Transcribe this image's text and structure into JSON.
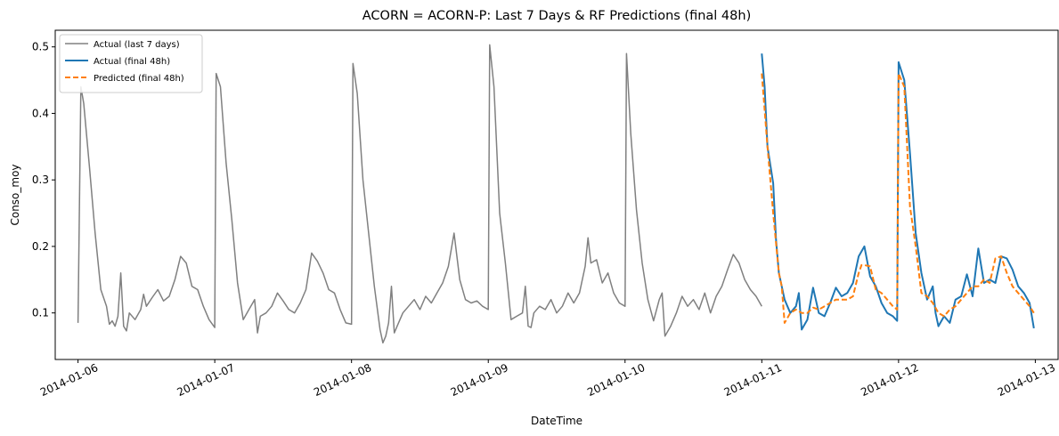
{
  "chart_data": {
    "type": "line",
    "title": "ACORN = ACORN-P: Last 7 Days & RF Predictions (final 48h)",
    "xlabel": "DateTime",
    "ylabel": "Conso_moy",
    "x_range": [
      "2014-01-05T20:00",
      "2014-01-13T04:00"
    ],
    "ylim": [
      0.03,
      0.525
    ],
    "x_ticks": [
      "2014-01-06",
      "2014-01-07",
      "2014-01-08",
      "2014-01-09",
      "2014-01-10",
      "2014-01-11",
      "2014-01-12",
      "2014-01-13"
    ],
    "y_ticks": [
      "0.1",
      "0.2",
      "0.3",
      "0.4",
      "0.5"
    ],
    "grid": false,
    "legend_position": "top-left",
    "series": [
      {
        "name": "Actual (last 7 days)",
        "color": "#808080",
        "style": "solid",
        "points": [
          [
            "2014-01-06T00:00",
            0.085
          ],
          [
            "2014-01-06T00:30",
            0.44
          ],
          [
            "2014-01-06T01:00",
            0.415
          ],
          [
            "2014-01-06T02:00",
            0.32
          ],
          [
            "2014-01-06T03:00",
            0.22
          ],
          [
            "2014-01-06T04:00",
            0.135
          ],
          [
            "2014-01-06T05:00",
            0.11
          ],
          [
            "2014-01-06T05:30",
            0.083
          ],
          [
            "2014-01-06T06:00",
            0.088
          ],
          [
            "2014-01-06T06:30",
            0.08
          ],
          [
            "2014-01-06T07:00",
            0.095
          ],
          [
            "2014-01-06T07:30",
            0.16
          ],
          [
            "2014-01-06T08:00",
            0.08
          ],
          [
            "2014-01-06T08:30",
            0.073
          ],
          [
            "2014-01-06T09:00",
            0.1
          ],
          [
            "2014-01-06T10:00",
            0.09
          ],
          [
            "2014-01-06T11:00",
            0.105
          ],
          [
            "2014-01-06T11:30",
            0.128
          ],
          [
            "2014-01-06T12:00",
            0.11
          ],
          [
            "2014-01-06T13:00",
            0.123
          ],
          [
            "2014-01-06T14:00",
            0.135
          ],
          [
            "2014-01-06T15:00",
            0.118
          ],
          [
            "2014-01-06T16:00",
            0.125
          ],
          [
            "2014-01-06T17:00",
            0.15
          ],
          [
            "2014-01-06T18:00",
            0.185
          ],
          [
            "2014-01-06T19:00",
            0.175
          ],
          [
            "2014-01-06T20:00",
            0.14
          ],
          [
            "2014-01-06T21:00",
            0.135
          ],
          [
            "2014-01-06T22:00",
            0.11
          ],
          [
            "2014-01-06T23:00",
            0.09
          ],
          [
            "2014-01-07T00:00",
            0.078
          ],
          [
            "2014-01-07T00:15",
            0.46
          ],
          [
            "2014-01-07T01:00",
            0.44
          ],
          [
            "2014-01-07T02:00",
            0.325
          ],
          [
            "2014-01-07T03:00",
            0.24
          ],
          [
            "2014-01-07T04:00",
            0.145
          ],
          [
            "2014-01-07T05:00",
            0.09
          ],
          [
            "2014-01-07T06:00",
            0.105
          ],
          [
            "2014-01-07T07:00",
            0.12
          ],
          [
            "2014-01-07T07:30",
            0.07
          ],
          [
            "2014-01-07T08:00",
            0.095
          ],
          [
            "2014-01-07T09:00",
            0.1
          ],
          [
            "2014-01-07T10:00",
            0.11
          ],
          [
            "2014-01-07T11:00",
            0.13
          ],
          [
            "2014-01-07T12:00",
            0.118
          ],
          [
            "2014-01-07T13:00",
            0.105
          ],
          [
            "2014-01-07T14:00",
            0.1
          ],
          [
            "2014-01-07T15:00",
            0.115
          ],
          [
            "2014-01-07T16:00",
            0.135
          ],
          [
            "2014-01-07T17:00",
            0.19
          ],
          [
            "2014-01-07T18:00",
            0.178
          ],
          [
            "2014-01-07T19:00",
            0.16
          ],
          [
            "2014-01-07T20:00",
            0.135
          ],
          [
            "2014-01-07T21:00",
            0.13
          ],
          [
            "2014-01-07T22:00",
            0.105
          ],
          [
            "2014-01-07T23:00",
            0.085
          ],
          [
            "2014-01-08T00:00",
            0.083
          ],
          [
            "2014-01-08T00:15",
            0.475
          ],
          [
            "2014-01-08T01:00",
            0.43
          ],
          [
            "2014-01-08T02:00",
            0.3
          ],
          [
            "2014-01-08T03:00",
            0.22
          ],
          [
            "2014-01-08T04:00",
            0.14
          ],
          [
            "2014-01-08T05:00",
            0.075
          ],
          [
            "2014-01-08T05:30",
            0.055
          ],
          [
            "2014-01-08T06:00",
            0.065
          ],
          [
            "2014-01-08T06:30",
            0.085
          ],
          [
            "2014-01-08T07:00",
            0.14
          ],
          [
            "2014-01-08T07:30",
            0.07
          ],
          [
            "2014-01-08T08:00",
            0.08
          ],
          [
            "2014-01-08T09:00",
            0.1
          ],
          [
            "2014-01-08T10:00",
            0.11
          ],
          [
            "2014-01-08T11:00",
            0.12
          ],
          [
            "2014-01-08T12:00",
            0.105
          ],
          [
            "2014-01-08T13:00",
            0.125
          ],
          [
            "2014-01-08T14:00",
            0.115
          ],
          [
            "2014-01-08T15:00",
            0.13
          ],
          [
            "2014-01-08T16:00",
            0.145
          ],
          [
            "2014-01-08T17:00",
            0.17
          ],
          [
            "2014-01-08T18:00",
            0.22
          ],
          [
            "2014-01-08T19:00",
            0.15
          ],
          [
            "2014-01-08T20:00",
            0.12
          ],
          [
            "2014-01-08T21:00",
            0.115
          ],
          [
            "2014-01-08T22:00",
            0.118
          ],
          [
            "2014-01-08T23:00",
            0.11
          ],
          [
            "2014-01-09T00:00",
            0.105
          ],
          [
            "2014-01-09T00:15",
            0.503
          ],
          [
            "2014-01-09T01:00",
            0.44
          ],
          [
            "2014-01-09T02:00",
            0.25
          ],
          [
            "2014-01-09T03:00",
            0.175
          ],
          [
            "2014-01-09T04:00",
            0.09
          ],
          [
            "2014-01-09T05:00",
            0.095
          ],
          [
            "2014-01-09T06:00",
            0.1
          ],
          [
            "2014-01-09T06:30",
            0.14
          ],
          [
            "2014-01-09T07:00",
            0.08
          ],
          [
            "2014-01-09T07:30",
            0.078
          ],
          [
            "2014-01-09T08:00",
            0.1
          ],
          [
            "2014-01-09T09:00",
            0.11
          ],
          [
            "2014-01-09T10:00",
            0.105
          ],
          [
            "2014-01-09T11:00",
            0.12
          ],
          [
            "2014-01-09T12:00",
            0.1
          ],
          [
            "2014-01-09T13:00",
            0.11
          ],
          [
            "2014-01-09T14:00",
            0.13
          ],
          [
            "2014-01-09T15:00",
            0.115
          ],
          [
            "2014-01-09T16:00",
            0.13
          ],
          [
            "2014-01-09T17:00",
            0.17
          ],
          [
            "2014-01-09T17:30",
            0.213
          ],
          [
            "2014-01-09T18:00",
            0.175
          ],
          [
            "2014-01-09T19:00",
            0.18
          ],
          [
            "2014-01-09T20:00",
            0.145
          ],
          [
            "2014-01-09T21:00",
            0.16
          ],
          [
            "2014-01-09T22:00",
            0.13
          ],
          [
            "2014-01-09T23:00",
            0.115
          ],
          [
            "2014-01-10T00:00",
            0.11
          ],
          [
            "2014-01-10T00:15",
            0.49
          ],
          [
            "2014-01-10T01:00",
            0.37
          ],
          [
            "2014-01-10T02:00",
            0.255
          ],
          [
            "2014-01-10T03:00",
            0.175
          ],
          [
            "2014-01-10T04:00",
            0.12
          ],
          [
            "2014-01-10T05:00",
            0.088
          ],
          [
            "2014-01-10T06:00",
            0.12
          ],
          [
            "2014-01-10T06:30",
            0.13
          ],
          [
            "2014-01-10T07:00",
            0.065
          ],
          [
            "2014-01-10T08:00",
            0.08
          ],
          [
            "2014-01-10T09:00",
            0.1
          ],
          [
            "2014-01-10T10:00",
            0.125
          ],
          [
            "2014-01-10T11:00",
            0.11
          ],
          [
            "2014-01-10T12:00",
            0.12
          ],
          [
            "2014-01-10T13:00",
            0.105
          ],
          [
            "2014-01-10T14:00",
            0.13
          ],
          [
            "2014-01-10T15:00",
            0.1
          ],
          [
            "2014-01-10T16:00",
            0.125
          ],
          [
            "2014-01-10T17:00",
            0.14
          ],
          [
            "2014-01-10T18:00",
            0.165
          ],
          [
            "2014-01-10T19:00",
            0.188
          ],
          [
            "2014-01-10T20:00",
            0.175
          ],
          [
            "2014-01-10T21:00",
            0.15
          ],
          [
            "2014-01-10T22:00",
            0.135
          ],
          [
            "2014-01-10T23:00",
            0.125
          ],
          [
            "2014-01-11T00:00",
            0.11
          ]
        ]
      },
      {
        "name": "Actual (final 48h)",
        "color": "#1f77b4",
        "style": "solid",
        "points": [
          [
            "2014-01-11T00:00",
            0.49
          ],
          [
            "2014-01-11T00:30",
            0.44
          ],
          [
            "2014-01-11T01:00",
            0.35
          ],
          [
            "2014-01-11T02:00",
            0.295
          ],
          [
            "2014-01-11T02:30",
            0.21
          ],
          [
            "2014-01-11T03:00",
            0.16
          ],
          [
            "2014-01-11T04:00",
            0.12
          ],
          [
            "2014-01-11T05:00",
            0.1
          ],
          [
            "2014-01-11T06:00",
            0.11
          ],
          [
            "2014-01-11T06:30",
            0.13
          ],
          [
            "2014-01-11T07:00",
            0.075
          ],
          [
            "2014-01-11T08:00",
            0.09
          ],
          [
            "2014-01-11T09:00",
            0.138
          ],
          [
            "2014-01-11T10:00",
            0.1
          ],
          [
            "2014-01-11T11:00",
            0.095
          ],
          [
            "2014-01-11T12:00",
            0.115
          ],
          [
            "2014-01-11T13:00",
            0.138
          ],
          [
            "2014-01-11T14:00",
            0.125
          ],
          [
            "2014-01-11T15:00",
            0.13
          ],
          [
            "2014-01-11T16:00",
            0.145
          ],
          [
            "2014-01-11T17:00",
            0.185
          ],
          [
            "2014-01-11T18:00",
            0.2
          ],
          [
            "2014-01-11T19:00",
            0.155
          ],
          [
            "2014-01-11T20:00",
            0.14
          ],
          [
            "2014-01-11T21:00",
            0.115
          ],
          [
            "2014-01-11T22:00",
            0.1
          ],
          [
            "2014-01-11T23:00",
            0.095
          ],
          [
            "2014-01-11T23:45",
            0.088
          ],
          [
            "2014-01-12T00:00",
            0.477
          ],
          [
            "2014-01-12T01:00",
            0.45
          ],
          [
            "2014-01-12T02:00",
            0.34
          ],
          [
            "2014-01-12T03:00",
            0.22
          ],
          [
            "2014-01-12T04:00",
            0.16
          ],
          [
            "2014-01-12T05:00",
            0.12
          ],
          [
            "2014-01-12T06:00",
            0.14
          ],
          [
            "2014-01-12T06:30",
            0.1
          ],
          [
            "2014-01-12T07:00",
            0.08
          ],
          [
            "2014-01-12T08:00",
            0.095
          ],
          [
            "2014-01-12T09:00",
            0.085
          ],
          [
            "2014-01-12T10:00",
            0.12
          ],
          [
            "2014-01-12T11:00",
            0.125
          ],
          [
            "2014-01-12T12:00",
            0.158
          ],
          [
            "2014-01-12T13:00",
            0.125
          ],
          [
            "2014-01-12T14:00",
            0.197
          ],
          [
            "2014-01-12T15:00",
            0.145
          ],
          [
            "2014-01-12T16:00",
            0.15
          ],
          [
            "2014-01-12T17:00",
            0.145
          ],
          [
            "2014-01-12T18:00",
            0.185
          ],
          [
            "2014-01-12T19:00",
            0.182
          ],
          [
            "2014-01-12T20:00",
            0.165
          ],
          [
            "2014-01-12T21:00",
            0.14
          ],
          [
            "2014-01-12T22:00",
            0.13
          ],
          [
            "2014-01-12T23:00",
            0.115
          ],
          [
            "2014-01-12T23:45",
            0.077
          ]
        ]
      },
      {
        "name": "Predicted (final 48h)",
        "color": "#ff7f0e",
        "style": "dashed",
        "points": [
          [
            "2014-01-11T00:00",
            0.46
          ],
          [
            "2014-01-11T01:00",
            0.35
          ],
          [
            "2014-01-11T02:00",
            0.25
          ],
          [
            "2014-01-11T03:00",
            0.16
          ],
          [
            "2014-01-11T03:30",
            0.14
          ],
          [
            "2014-01-11T04:00",
            0.085
          ],
          [
            "2014-01-11T05:00",
            0.1
          ],
          [
            "2014-01-11T06:00",
            0.105
          ],
          [
            "2014-01-11T07:00",
            0.1
          ],
          [
            "2014-01-11T08:00",
            0.1
          ],
          [
            "2014-01-11T09:00",
            0.108
          ],
          [
            "2014-01-11T10:00",
            0.105
          ],
          [
            "2014-01-11T11:00",
            0.11
          ],
          [
            "2014-01-11T12:00",
            0.115
          ],
          [
            "2014-01-11T13:00",
            0.12
          ],
          [
            "2014-01-11T14:00",
            0.12
          ],
          [
            "2014-01-11T15:00",
            0.12
          ],
          [
            "2014-01-11T16:00",
            0.125
          ],
          [
            "2014-01-11T17:00",
            0.16
          ],
          [
            "2014-01-11T17:30",
            0.172
          ],
          [
            "2014-01-11T18:00",
            0.172
          ],
          [
            "2014-01-11T19:00",
            0.17
          ],
          [
            "2014-01-11T20:00",
            0.135
          ],
          [
            "2014-01-11T21:00",
            0.13
          ],
          [
            "2014-01-11T22:00",
            0.12
          ],
          [
            "2014-01-11T23:00",
            0.11
          ],
          [
            "2014-01-11T23:45",
            0.105
          ],
          [
            "2014-01-12T00:00",
            0.46
          ],
          [
            "2014-01-12T01:00",
            0.44
          ],
          [
            "2014-01-12T02:00",
            0.26
          ],
          [
            "2014-01-12T03:00",
            0.2
          ],
          [
            "2014-01-12T04:00",
            0.13
          ],
          [
            "2014-01-12T05:00",
            0.125
          ],
          [
            "2014-01-12T06:00",
            0.115
          ],
          [
            "2014-01-12T07:00",
            0.1
          ],
          [
            "2014-01-12T08:00",
            0.095
          ],
          [
            "2014-01-12T09:00",
            0.105
          ],
          [
            "2014-01-12T10:00",
            0.11
          ],
          [
            "2014-01-12T11:00",
            0.12
          ],
          [
            "2014-01-12T12:00",
            0.13
          ],
          [
            "2014-01-12T13:00",
            0.14
          ],
          [
            "2014-01-12T14:00",
            0.14
          ],
          [
            "2014-01-12T15:00",
            0.15
          ],
          [
            "2014-01-12T16:00",
            0.145
          ],
          [
            "2014-01-12T17:00",
            0.182
          ],
          [
            "2014-01-12T18:00",
            0.185
          ],
          [
            "2014-01-12T19:00",
            0.16
          ],
          [
            "2014-01-12T20:00",
            0.14
          ],
          [
            "2014-01-12T21:00",
            0.13
          ],
          [
            "2014-01-12T22:00",
            0.12
          ],
          [
            "2014-01-12T23:00",
            0.11
          ],
          [
            "2014-01-12T23:45",
            0.1
          ]
        ]
      }
    ]
  }
}
